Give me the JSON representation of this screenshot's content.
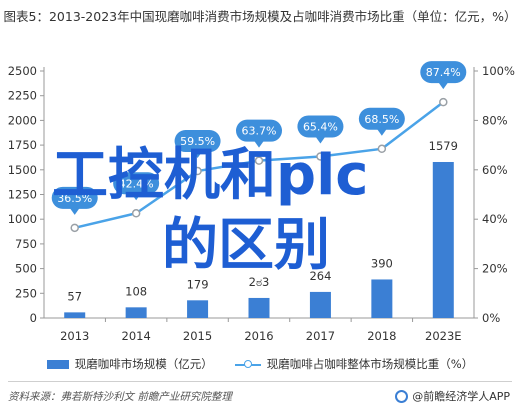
{
  "title": "图表5：2013-2023年中国现磨咖啡消费市场规模及占咖啡消费市场比重（单位：亿元，%）",
  "chart_data": {
    "type": "bar",
    "categories": [
      "2013",
      "2014",
      "2015",
      "2016",
      "2017",
      "2018",
      "2023E"
    ],
    "series": [
      {
        "name": "现磨咖啡市场规模（亿元）",
        "type": "bar",
        "axis": "left",
        "values": [
          57,
          108,
          179,
          203,
          264,
          390,
          1579
        ],
        "labels": [
          "57",
          "108",
          "179",
          "2ಠ3",
          "264",
          "390",
          "1579"
        ]
      },
      {
        "name": "现磨咖啡占咖啡整体市场规模比重（%）",
        "type": "line",
        "axis": "right",
        "values": [
          36.5,
          42.4,
          59.5,
          63.7,
          65.4,
          68.5,
          87.4
        ],
        "labels": [
          "36.5%",
          "42.4%",
          "59.5%",
          "63.7%",
          "65.4%",
          "68.5%",
          "87.4%"
        ]
      }
    ],
    "yleft_ticks": [
      "0",
      "250",
      "500",
      "750",
      "1000",
      "1250",
      "1500",
      "1750",
      "2000",
      "2250",
      "2500"
    ],
    "yleft_lim": [
      0,
      2500
    ],
    "yright_ticks": [
      "0%",
      "20%",
      "40%",
      "60%",
      "80%",
      "100%"
    ],
    "yright_lim": [
      0,
      100
    ],
    "grid": false,
    "legend": "bottom"
  },
  "legend": {
    "bar_label": "现磨咖啡市场规模（亿元）",
    "line_label": "现磨咖啡占咖啡整体市场规模比重（%）"
  },
  "source": "资料来源：弗若斯特沙利文 前瞻产业研究院整理",
  "brand": "@前瞻经济学人APP",
  "overlay": {
    "line1": "工控机和plc",
    "line2": "的区别"
  },
  "colors": {
    "bar": "#3b7fd4",
    "line": "#4aa3e8",
    "callout": "#3d8fdc",
    "overlay": "#1e5ed3"
  }
}
